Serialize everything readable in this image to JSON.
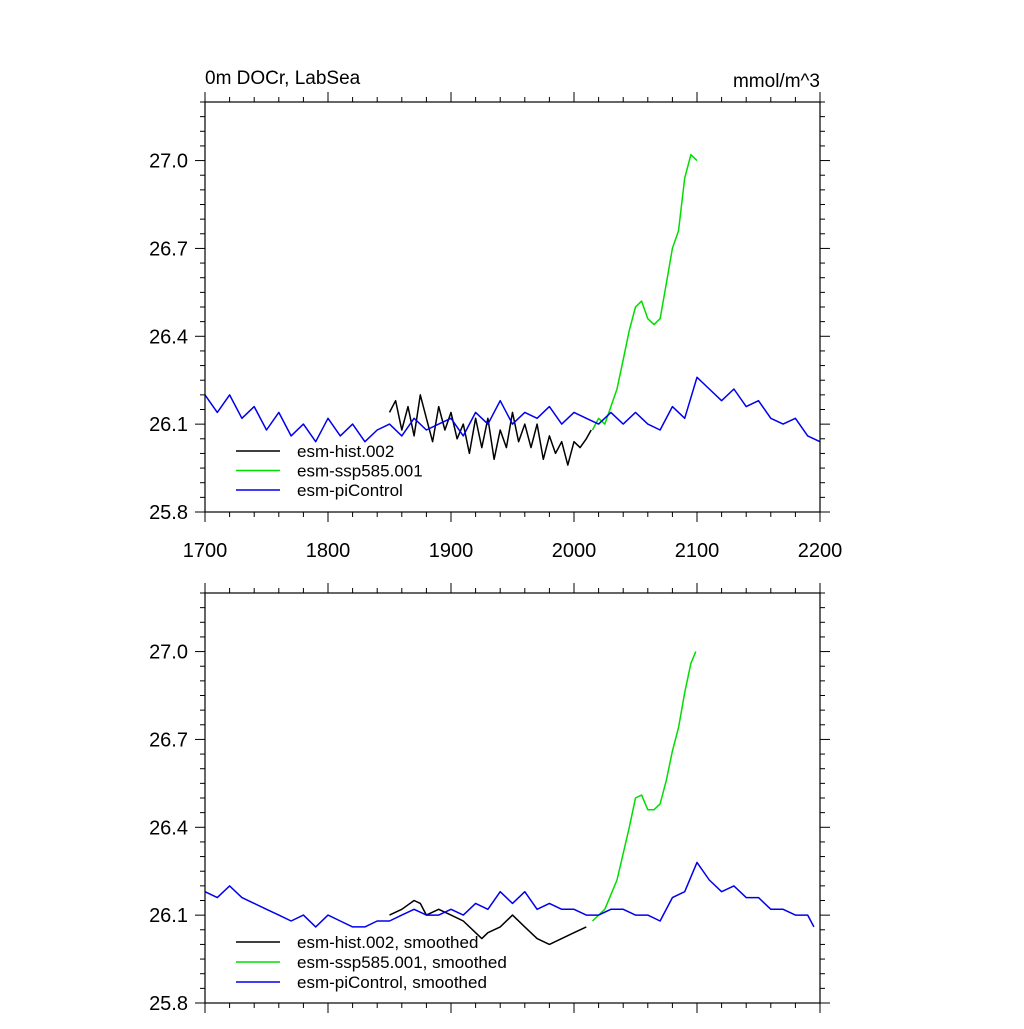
{
  "chart_data": [
    {
      "type": "line",
      "title": "0m DOCr, LabSea",
      "units": "mmol/m^3",
      "xlim": [
        1700,
        2200
      ],
      "ylim": [
        25.8,
        27.2
      ],
      "xticks": [
        1700,
        1800,
        1900,
        2000,
        2100,
        2200
      ],
      "xtick_labels": [
        "1700",
        "1800",
        "1900",
        "2000",
        "2100",
        "2200"
      ],
      "yticks": [
        25.8,
        26.1,
        26.4,
        26.7,
        27.0
      ],
      "ytick_labels": [
        "25.8",
        "26.1",
        "26.4",
        "26.7",
        "27.0"
      ],
      "grid": false,
      "legend_position": "bottom-left",
      "series": [
        {
          "name": "esm-hist.002",
          "color": "#000000",
          "x": [
            1850,
            1855,
            1860,
            1865,
            1870,
            1875,
            1880,
            1885,
            1890,
            1895,
            1900,
            1905,
            1910,
            1915,
            1920,
            1925,
            1930,
            1935,
            1940,
            1945,
            1950,
            1955,
            1960,
            1965,
            1970,
            1975,
            1980,
            1985,
            1990,
            1995,
            2000,
            2005,
            2010,
            2014
          ],
          "y": [
            26.14,
            26.18,
            26.08,
            26.16,
            26.06,
            26.2,
            26.12,
            26.04,
            26.16,
            26.08,
            26.14,
            26.05,
            26.1,
            26.0,
            26.12,
            26.02,
            26.12,
            25.98,
            26.08,
            26.02,
            26.14,
            26.04,
            26.1,
            26.02,
            26.1,
            25.98,
            26.06,
            26.0,
            26.04,
            25.96,
            26.04,
            26.02,
            26.05,
            26.08
          ]
        },
        {
          "name": "esm-ssp585.001",
          "color": "#00dd00",
          "x": [
            2015,
            2020,
            2025,
            2030,
            2035,
            2040,
            2045,
            2050,
            2055,
            2060,
            2065,
            2070,
            2075,
            2080,
            2085,
            2090,
            2095,
            2100
          ],
          "y": [
            26.08,
            26.12,
            26.1,
            26.16,
            26.22,
            26.32,
            26.42,
            26.5,
            26.52,
            26.46,
            26.44,
            26.46,
            26.58,
            26.7,
            26.76,
            26.94,
            27.02,
            27.0
          ]
        },
        {
          "name": "esm-piControl",
          "color": "#0000ee",
          "x": [
            1700,
            1710,
            1720,
            1730,
            1740,
            1750,
            1760,
            1770,
            1780,
            1790,
            1800,
            1810,
            1820,
            1830,
            1840,
            1850,
            1860,
            1870,
            1880,
            1890,
            1900,
            1910,
            1920,
            1930,
            1940,
            1950,
            1960,
            1970,
            1980,
            1990,
            2000,
            2010,
            2020,
            2030,
            2040,
            2050,
            2060,
            2070,
            2080,
            2090,
            2100,
            2110,
            2120,
            2130,
            2140,
            2150,
            2160,
            2170,
            2180,
            2190,
            2200
          ],
          "y": [
            26.2,
            26.14,
            26.2,
            26.12,
            26.16,
            26.08,
            26.14,
            26.06,
            26.1,
            26.04,
            26.12,
            26.06,
            26.1,
            26.04,
            26.08,
            26.1,
            26.06,
            26.12,
            26.08,
            26.1,
            26.12,
            26.06,
            26.14,
            26.1,
            26.18,
            26.1,
            26.14,
            26.12,
            26.16,
            26.1,
            26.14,
            26.12,
            26.1,
            26.14,
            26.1,
            26.14,
            26.1,
            26.08,
            26.16,
            26.12,
            26.26,
            26.22,
            26.18,
            26.22,
            26.16,
            26.18,
            26.12,
            26.1,
            26.12,
            26.06,
            26.04
          ]
        }
      ]
    },
    {
      "type": "line",
      "xlim": [
        1700,
        2200
      ],
      "ylim": [
        25.8,
        27.2
      ],
      "yticks": [
        25.8,
        26.1,
        26.4,
        26.7,
        27.0
      ],
      "ytick_labels": [
        "25.8",
        "26.1",
        "26.4",
        "26.7",
        "27.0"
      ],
      "grid": false,
      "legend_position": "bottom-left",
      "series": [
        {
          "name": "esm-hist.002, smoothed",
          "color": "#000000",
          "x": [
            1850,
            1860,
            1870,
            1875,
            1880,
            1890,
            1900,
            1910,
            1920,
            1925,
            1930,
            1940,
            1950,
            1960,
            1970,
            1980,
            1990,
            2000,
            2010
          ],
          "y": [
            26.1,
            26.12,
            26.15,
            26.14,
            26.1,
            26.12,
            26.1,
            26.08,
            26.04,
            26.02,
            26.04,
            26.06,
            26.1,
            26.06,
            26.02,
            26.0,
            26.02,
            26.04,
            26.06
          ]
        },
        {
          "name": "esm-ssp585.001, smoothed",
          "color": "#00dd00",
          "x": [
            2015,
            2025,
            2035,
            2045,
            2050,
            2055,
            2060,
            2065,
            2070,
            2075,
            2080,
            2085,
            2090,
            2095,
            2099
          ],
          "y": [
            26.08,
            26.12,
            26.22,
            26.4,
            26.5,
            26.51,
            26.46,
            26.46,
            26.48,
            26.56,
            26.66,
            26.74,
            26.86,
            26.96,
            27.0
          ]
        },
        {
          "name": "esm-piControl, smoothed",
          "color": "#0000ee",
          "x": [
            1700,
            1710,
            1720,
            1730,
            1740,
            1750,
            1760,
            1770,
            1780,
            1790,
            1800,
            1810,
            1820,
            1830,
            1840,
            1850,
            1860,
            1870,
            1880,
            1890,
            1900,
            1910,
            1920,
            1930,
            1940,
            1950,
            1960,
            1970,
            1980,
            1990,
            2000,
            2010,
            2020,
            2030,
            2040,
            2050,
            2060,
            2070,
            2080,
            2090,
            2100,
            2110,
            2120,
            2130,
            2140,
            2150,
            2160,
            2170,
            2180,
            2190,
            2195
          ],
          "y": [
            26.18,
            26.16,
            26.2,
            26.16,
            26.14,
            26.12,
            26.1,
            26.08,
            26.1,
            26.06,
            26.1,
            26.08,
            26.06,
            26.06,
            26.08,
            26.08,
            26.1,
            26.12,
            26.1,
            26.1,
            26.12,
            26.1,
            26.14,
            26.12,
            26.18,
            26.14,
            26.18,
            26.12,
            26.14,
            26.12,
            26.12,
            26.1,
            26.1,
            26.12,
            26.12,
            26.1,
            26.1,
            26.08,
            26.16,
            26.18,
            26.28,
            26.22,
            26.18,
            26.2,
            26.16,
            26.16,
            26.12,
            26.12,
            26.1,
            26.1,
            26.06
          ]
        }
      ]
    }
  ]
}
